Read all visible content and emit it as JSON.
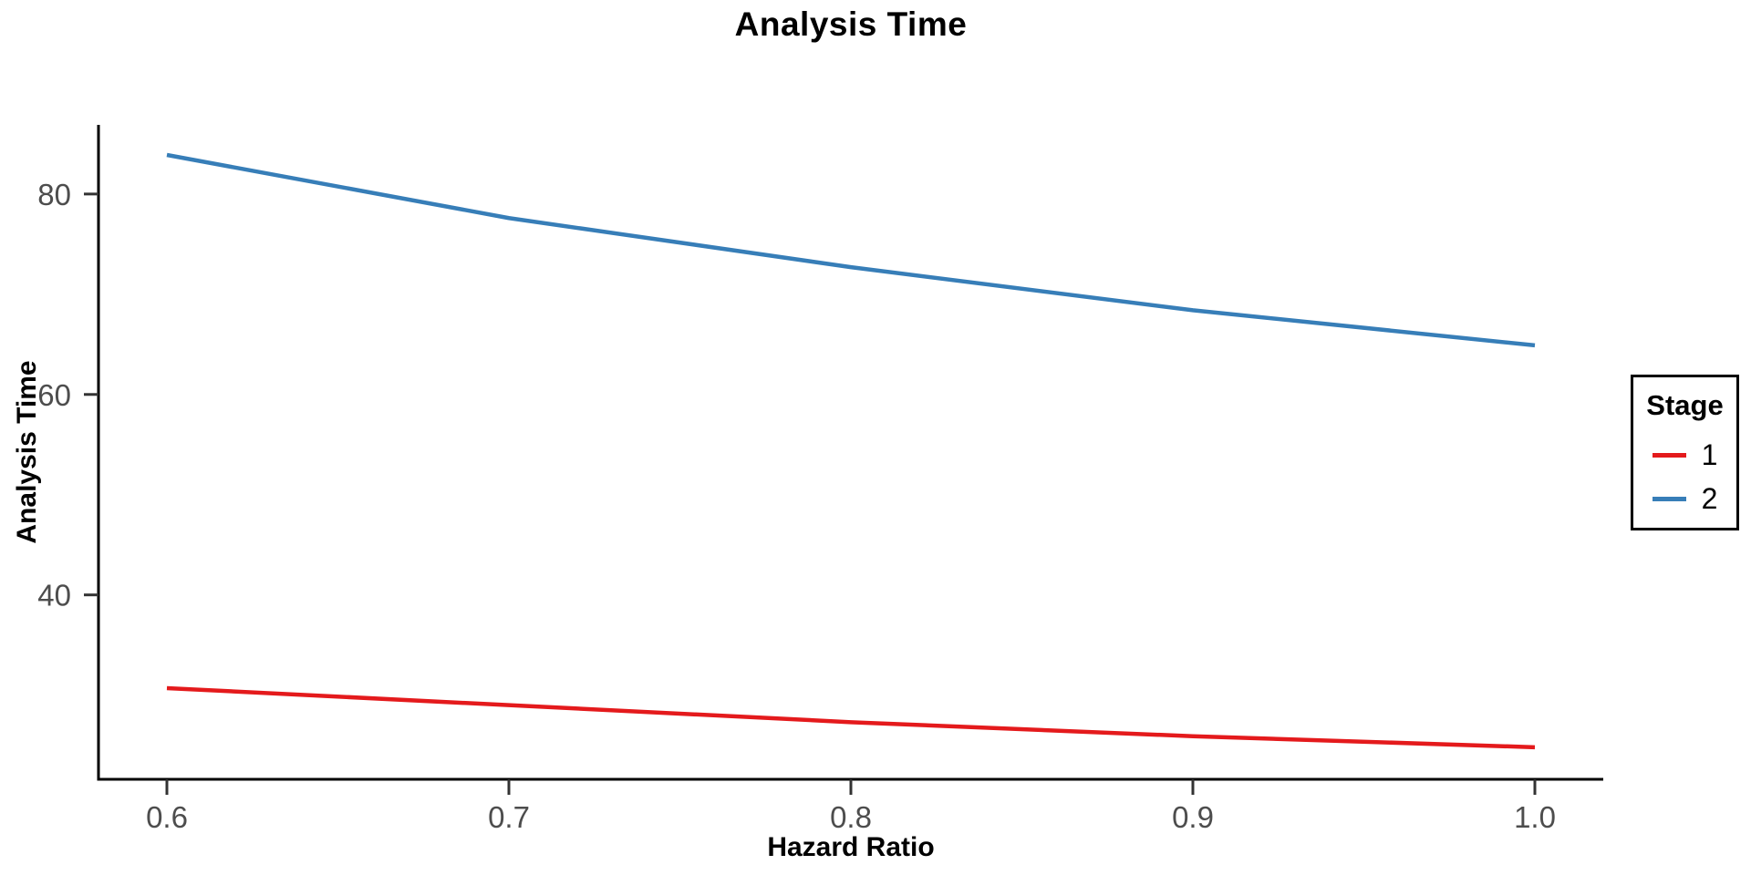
{
  "chart_data": {
    "type": "line",
    "title": "Analysis Time",
    "xlabel": "Hazard Ratio",
    "ylabel": "Analysis Time",
    "x": [
      0.6,
      0.7,
      0.8,
      0.9,
      1.0
    ],
    "series": [
      {
        "name": "1",
        "color": "#e41a1c",
        "values": [
          30.7,
          29.0,
          27.3,
          25.9,
          24.8
        ]
      },
      {
        "name": "2",
        "color": "#377eb8",
        "values": [
          83.9,
          77.6,
          72.7,
          68.4,
          64.9
        ]
      }
    ],
    "x_ticks": [
      {
        "value": 0.6,
        "label": "0.6"
      },
      {
        "value": 0.7,
        "label": "0.7"
      },
      {
        "value": 0.8,
        "label": "0.8"
      },
      {
        "value": 0.9,
        "label": "0.9"
      },
      {
        "value": 1.0,
        "label": "1.0"
      }
    ],
    "y_ticks": [
      {
        "value": 40,
        "label": "40"
      },
      {
        "value": 60,
        "label": "60"
      },
      {
        "value": 80,
        "label": "80"
      }
    ],
    "xlim": [
      0.58,
      1.02
    ],
    "ylim": [
      21.6,
      86.9
    ],
    "grid": false,
    "legend": {
      "title": "Stage",
      "position": "right"
    },
    "colors": {
      "axis_line": "#000000",
      "tick_mark": "#333333",
      "tick_text": "#4d4d4d",
      "title_text": "#000000",
      "background": "#ffffff"
    }
  }
}
